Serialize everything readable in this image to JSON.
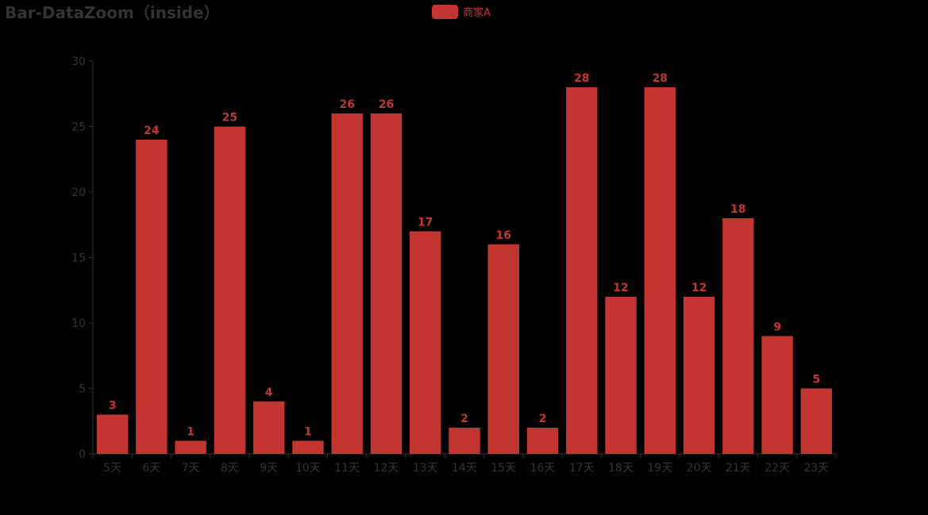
{
  "chart_data": {
    "type": "bar",
    "title": "Bar-DataZoom（inside）",
    "categories": [
      "5天",
      "6天",
      "7天",
      "8天",
      "9天",
      "10天",
      "11天",
      "12天",
      "13天",
      "14天",
      "15天",
      "16天",
      "17天",
      "18天",
      "19天",
      "20天",
      "21天",
      "22天",
      "23天"
    ],
    "series": [
      {
        "name": "商家A",
        "color": "#c23531",
        "values": [
          3,
          24,
          1,
          25,
          4,
          1,
          26,
          26,
          17,
          2,
          16,
          2,
          28,
          12,
          28,
          12,
          18,
          9,
          5
        ]
      }
    ],
    "ylim": [
      0,
      30
    ],
    "y_ticks": [
      0,
      5,
      10,
      15,
      20,
      25,
      30
    ],
    "grid": false,
    "legend_position": "top-center",
    "data_labels": true
  }
}
